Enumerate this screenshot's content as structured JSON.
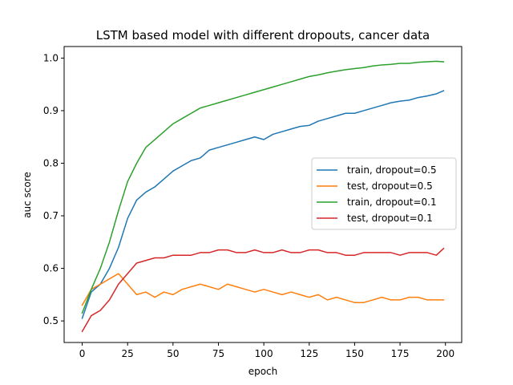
{
  "chart_data": {
    "type": "line",
    "title": "LSTM based model with different dropouts, cancer data",
    "xlabel": "epoch",
    "ylabel": "auc score",
    "xlim": [
      -9.95,
      208.95
    ],
    "ylim": [
      0.459,
      1.022
    ],
    "xticks": [
      0,
      25,
      50,
      75,
      100,
      125,
      150,
      175,
      200
    ],
    "yticks": [
      0.5,
      0.6,
      0.7,
      0.8,
      0.9,
      1.0
    ],
    "xtick_labels": [
      "0",
      "25",
      "50",
      "75",
      "100",
      "125",
      "150",
      "175",
      "200"
    ],
    "ytick_labels": [
      "0.5",
      "0.6",
      "0.7",
      "0.8",
      "0.9",
      "1.0"
    ],
    "grid": false,
    "legend_position": "center-right",
    "x": [
      0,
      5,
      10,
      15,
      20,
      25,
      30,
      35,
      40,
      45,
      50,
      55,
      60,
      65,
      70,
      75,
      80,
      85,
      90,
      95,
      100,
      105,
      110,
      115,
      120,
      125,
      130,
      135,
      140,
      145,
      150,
      155,
      160,
      165,
      170,
      175,
      180,
      185,
      190,
      195,
      199
    ],
    "series": [
      {
        "name": "train, dropout=0.5",
        "color": "#1f77b4",
        "values": [
          0.505,
          0.555,
          0.57,
          0.6,
          0.64,
          0.695,
          0.73,
          0.745,
          0.755,
          0.77,
          0.785,
          0.795,
          0.805,
          0.81,
          0.825,
          0.83,
          0.835,
          0.84,
          0.845,
          0.85,
          0.845,
          0.855,
          0.86,
          0.865,
          0.87,
          0.872,
          0.88,
          0.885,
          0.89,
          0.895,
          0.895,
          0.9,
          0.905,
          0.91,
          0.915,
          0.918,
          0.92,
          0.925,
          0.928,
          0.932,
          0.938
        ]
      },
      {
        "name": "test, dropout=0.5",
        "color": "#ff7f0e",
        "values": [
          0.53,
          0.56,
          0.57,
          0.58,
          0.59,
          0.57,
          0.55,
          0.555,
          0.545,
          0.555,
          0.55,
          0.56,
          0.565,
          0.57,
          0.565,
          0.56,
          0.57,
          0.565,
          0.56,
          0.555,
          0.56,
          0.555,
          0.55,
          0.555,
          0.55,
          0.545,
          0.55,
          0.54,
          0.545,
          0.54,
          0.535,
          0.535,
          0.54,
          0.545,
          0.54,
          0.54,
          0.545,
          0.545,
          0.54,
          0.54,
          0.54
        ]
      },
      {
        "name": "train, dropout=0.1",
        "color": "#2ca02c",
        "values": [
          0.515,
          0.56,
          0.6,
          0.65,
          0.71,
          0.765,
          0.8,
          0.83,
          0.845,
          0.86,
          0.875,
          0.885,
          0.895,
          0.905,
          0.91,
          0.915,
          0.92,
          0.925,
          0.93,
          0.935,
          0.94,
          0.945,
          0.95,
          0.955,
          0.96,
          0.965,
          0.968,
          0.972,
          0.975,
          0.978,
          0.98,
          0.982,
          0.985,
          0.987,
          0.988,
          0.99,
          0.99,
          0.992,
          0.993,
          0.994,
          0.993
        ]
      },
      {
        "name": "test, dropout=0.1",
        "color": "#d62728",
        "values": [
          0.48,
          0.51,
          0.52,
          0.54,
          0.57,
          0.59,
          0.61,
          0.615,
          0.62,
          0.62,
          0.625,
          0.625,
          0.625,
          0.63,
          0.63,
          0.635,
          0.635,
          0.63,
          0.63,
          0.635,
          0.63,
          0.63,
          0.635,
          0.63,
          0.63,
          0.635,
          0.635,
          0.63,
          0.63,
          0.625,
          0.625,
          0.63,
          0.63,
          0.63,
          0.63,
          0.625,
          0.63,
          0.63,
          0.63,
          0.625,
          0.638
        ]
      }
    ]
  }
}
